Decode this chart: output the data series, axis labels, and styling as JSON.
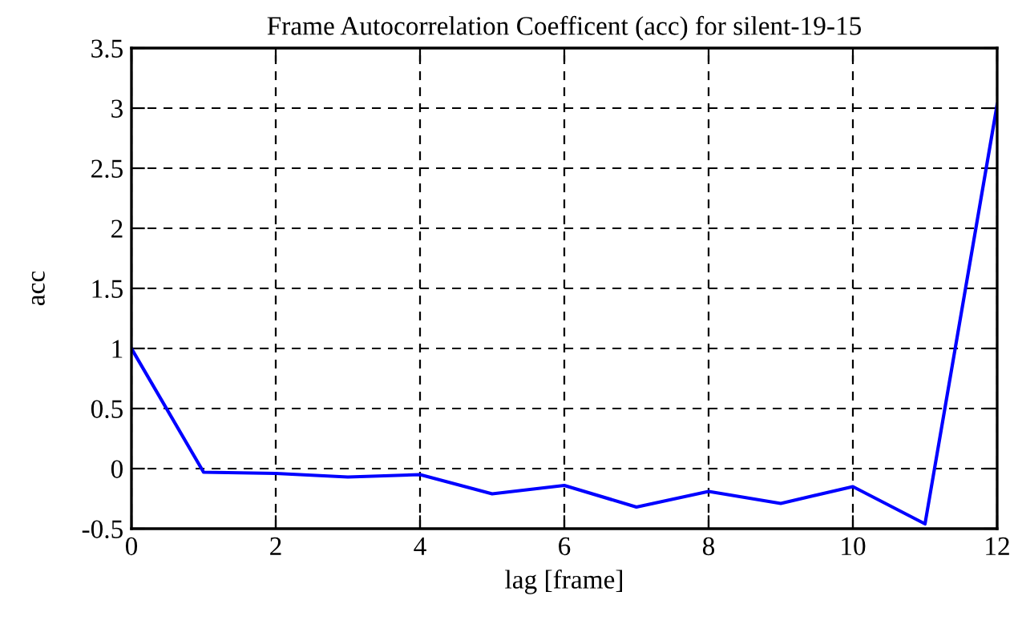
{
  "chart_data": {
    "type": "line",
    "title": "Frame Autocorrelation Coefficent (acc) for silent-19-15",
    "xlabel": "lag [frame]",
    "ylabel": "acc",
    "x": [
      0,
      1,
      2,
      3,
      4,
      5,
      6,
      7,
      8,
      9,
      10,
      11,
      12
    ],
    "series": [
      {
        "color": "#0000ff",
        "values": [
          1.0,
          -0.03,
          -0.04,
          -0.07,
          -0.05,
          -0.21,
          -0.14,
          -0.32,
          -0.19,
          -0.29,
          -0.15,
          -0.46,
          3.03
        ]
      }
    ],
    "xlim": [
      0,
      12
    ],
    "xticks": [
      0,
      2,
      4,
      6,
      8,
      10,
      12
    ],
    "ylim": [
      -0.5,
      3.5
    ],
    "yticks": [
      -0.5,
      0,
      0.5,
      1,
      1.5,
      2,
      2.5,
      3,
      3.5
    ],
    "grid": true,
    "line_style": "solid",
    "marker": "none"
  }
}
